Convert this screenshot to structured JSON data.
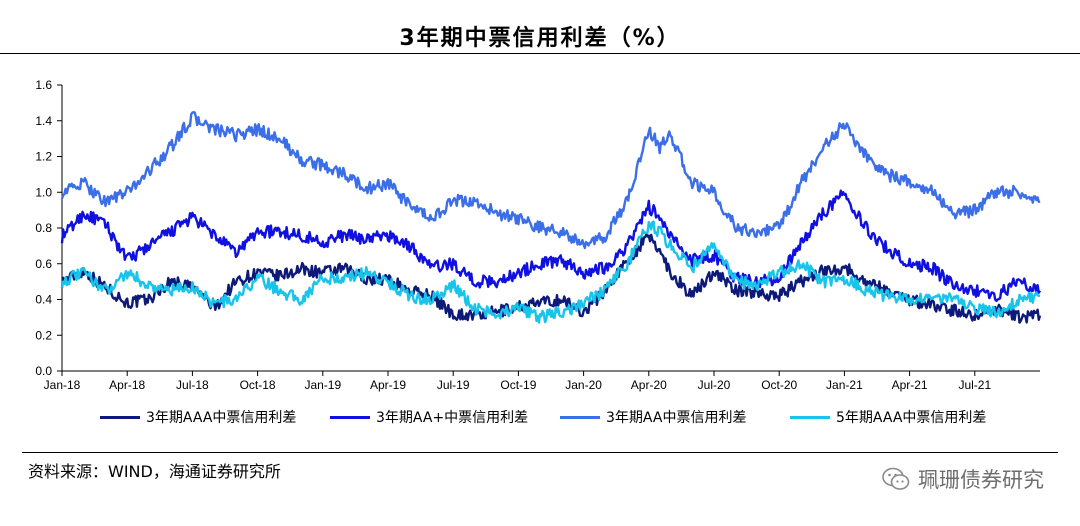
{
  "title": "3年期中票信用利差（%）",
  "source": "资料来源：WIND，海通证券研究所",
  "watermark": "珮珊债券研究",
  "chart_data": {
    "type": "line",
    "title": "3年期中票信用利差（%）",
    "xlabel": "",
    "ylabel": "",
    "ylim": [
      0.0,
      1.6
    ],
    "yticks": [
      0.0,
      0.2,
      0.4,
      0.6,
      0.8,
      1.0,
      1.2,
      1.4,
      1.6
    ],
    "xlim": [
      0,
      45
    ],
    "x_tick_positions": [
      0,
      3,
      6,
      9,
      12,
      15,
      18,
      21,
      24,
      27,
      30,
      33,
      36,
      39,
      42
    ],
    "x_tick_labels": [
      "Jan-18",
      "Apr-18",
      "Jul-18",
      "Oct-18",
      "Jan-19",
      "Apr-19",
      "Jul-19",
      "Oct-19",
      "Jan-20",
      "Apr-20",
      "Jul-20",
      "Oct-20",
      "Jan-21",
      "Apr-21",
      "Jul-21"
    ],
    "grid": false,
    "legend_position": "bottom",
    "x_unit": "months since Jan-18",
    "series": [
      {
        "name": "3年期AAA中票信用利差",
        "color": "#0d1a7a",
        "x": [
          0,
          1,
          2,
          3,
          4,
          5,
          6,
          6.5,
          7,
          8,
          9,
          10,
          11,
          12,
          13,
          14,
          15,
          16,
          17,
          18,
          19,
          20,
          21,
          22,
          23,
          24,
          25,
          26,
          27,
          27.5,
          28,
          29,
          30,
          31,
          32,
          33,
          34,
          35,
          36,
          37,
          38,
          39,
          40,
          41,
          42,
          43,
          44,
          45
        ],
        "y": [
          0.5,
          0.56,
          0.47,
          0.38,
          0.4,
          0.5,
          0.47,
          0.42,
          0.35,
          0.5,
          0.55,
          0.53,
          0.57,
          0.55,
          0.57,
          0.52,
          0.51,
          0.45,
          0.42,
          0.32,
          0.31,
          0.33,
          0.36,
          0.38,
          0.4,
          0.33,
          0.45,
          0.62,
          0.75,
          0.68,
          0.55,
          0.42,
          0.56,
          0.45,
          0.44,
          0.42,
          0.5,
          0.56,
          0.58,
          0.5,
          0.45,
          0.4,
          0.37,
          0.34,
          0.31,
          0.35,
          0.3,
          0.31
        ]
      },
      {
        "name": "3年期AA+中票信用利差",
        "color": "#1010e0",
        "x": [
          0,
          1,
          2,
          3,
          4,
          5,
          6,
          7,
          8,
          9,
          10,
          11,
          12,
          13,
          14,
          15,
          16,
          17,
          18,
          19,
          20,
          21,
          22,
          23,
          24,
          25,
          26,
          27,
          27.5,
          28,
          29,
          30,
          31,
          32,
          33,
          34,
          35,
          36,
          37,
          38,
          39,
          40,
          41,
          42,
          43,
          44,
          45
        ],
        "y": [
          0.75,
          0.88,
          0.82,
          0.62,
          0.7,
          0.78,
          0.86,
          0.76,
          0.66,
          0.78,
          0.78,
          0.76,
          0.72,
          0.76,
          0.74,
          0.76,
          0.7,
          0.58,
          0.6,
          0.5,
          0.5,
          0.55,
          0.6,
          0.62,
          0.55,
          0.58,
          0.7,
          0.92,
          0.86,
          0.75,
          0.62,
          0.65,
          0.52,
          0.5,
          0.52,
          0.72,
          0.88,
          1.0,
          0.8,
          0.68,
          0.6,
          0.58,
          0.48,
          0.45,
          0.42,
          0.5,
          0.45
        ]
      },
      {
        "name": "3年期AA中票信用利差",
        "color": "#3c6ee8",
        "x": [
          0,
          1,
          2,
          3,
          4,
          5,
          6,
          7,
          8,
          9,
          10,
          11,
          12,
          13,
          14,
          15,
          16,
          17,
          18,
          19,
          20,
          21,
          22,
          23,
          24,
          25,
          26,
          27,
          27.5,
          28,
          29,
          30,
          31,
          32,
          33,
          34,
          35,
          36,
          37,
          38,
          39,
          40,
          41,
          42,
          43,
          44,
          45
        ],
        "y": [
          1.0,
          1.05,
          0.95,
          1.0,
          1.12,
          1.25,
          1.42,
          1.35,
          1.32,
          1.35,
          1.3,
          1.18,
          1.15,
          1.1,
          1.02,
          1.05,
          0.92,
          0.85,
          0.95,
          0.95,
          0.88,
          0.85,
          0.8,
          0.78,
          0.7,
          0.75,
          0.95,
          1.35,
          1.25,
          1.32,
          1.05,
          1.0,
          0.8,
          0.78,
          0.8,
          1.05,
          1.25,
          1.38,
          1.2,
          1.1,
          1.05,
          1.02,
          0.88,
          0.9,
          1.0,
          1.0,
          0.95
        ]
      },
      {
        "name": "5年期AAA中票信用利差",
        "color": "#19c4ea",
        "x": [
          0,
          1,
          2,
          3,
          4,
          5,
          6,
          7,
          8,
          9,
          10,
          11,
          12,
          13,
          14,
          15,
          16,
          17,
          18,
          19,
          20,
          21,
          22,
          23,
          24,
          25,
          26,
          27,
          27.5,
          28,
          29,
          30,
          31,
          32,
          33,
          34,
          35,
          36,
          37,
          38,
          39,
          40,
          41,
          42,
          43,
          44,
          45
        ],
        "y": [
          0.5,
          0.55,
          0.45,
          0.55,
          0.48,
          0.45,
          0.47,
          0.38,
          0.4,
          0.52,
          0.45,
          0.4,
          0.52,
          0.52,
          0.55,
          0.5,
          0.42,
          0.4,
          0.48,
          0.35,
          0.32,
          0.35,
          0.3,
          0.33,
          0.38,
          0.45,
          0.6,
          0.82,
          0.78,
          0.7,
          0.58,
          0.7,
          0.5,
          0.48,
          0.55,
          0.6,
          0.5,
          0.52,
          0.45,
          0.42,
          0.4,
          0.42,
          0.4,
          0.35,
          0.33,
          0.4,
          0.42
        ]
      }
    ]
  }
}
